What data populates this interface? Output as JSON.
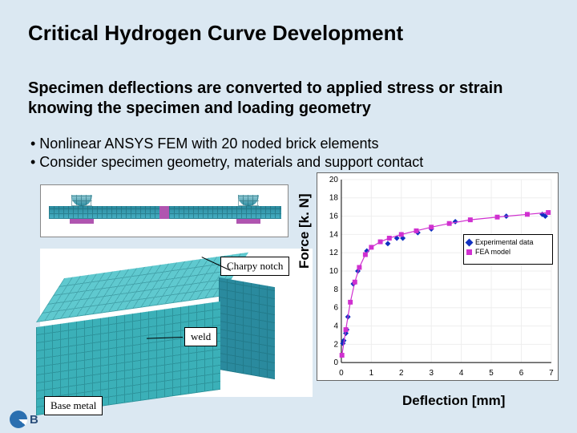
{
  "title": "Critical Hydrogen Curve Development",
  "subtitle": "Specimen deflections are converted to applied stress or strain knowing the specimen and loading geometry",
  "bullets": [
    "• Nonlinear ANSYS FEM with 20 noded brick elements",
    "• Consider specimen geometry, materials and support contact"
  ],
  "labels": {
    "charpy": "Charpy notch",
    "weld": "weld",
    "base_metal": "Base metal"
  },
  "chart": {
    "type": "scatter+line",
    "xlabel": "Deflection [mm]",
    "ylabel": "Force [k. N]",
    "xlim": [
      0,
      7
    ],
    "ylim": [
      0,
      20
    ],
    "xtick_step": 1,
    "ytick_step": 2,
    "background_color": "#ffffff",
    "grid_color": "#e8e8e8",
    "axis_color": "#000000",
    "tick_fontsize": 10,
    "legend": {
      "position": "right",
      "border_color": "#000000",
      "items": [
        {
          "label": "Experimental data",
          "marker": "diamond",
          "color": "#1030c0"
        },
        {
          "label": "FEA model",
          "marker": "square",
          "color": "#d030d0"
        }
      ]
    },
    "series": [
      {
        "name": "Experimental data",
        "marker": "diamond",
        "marker_size": 7,
        "color": "#1030c0",
        "line": false,
        "points": [
          [
            0.05,
            2.1
          ],
          [
            0.08,
            2.4
          ],
          [
            0.15,
            3.2
          ],
          [
            0.18,
            3.6
          ],
          [
            0.22,
            5.0
          ],
          [
            0.4,
            8.6
          ],
          [
            0.55,
            10.0
          ],
          [
            0.85,
            12.2
          ],
          [
            1.55,
            13.0
          ],
          [
            1.85,
            13.6
          ],
          [
            2.05,
            13.6
          ],
          [
            2.55,
            14.2
          ],
          [
            3.0,
            14.6
          ],
          [
            3.8,
            15.4
          ],
          [
            5.5,
            16.0
          ],
          [
            6.7,
            16.2
          ],
          [
            6.8,
            16.0
          ]
        ]
      },
      {
        "name": "FEA model",
        "marker": "square",
        "marker_size": 6,
        "color": "#d030d0",
        "line": true,
        "line_width": 1.2,
        "points": [
          [
            0.02,
            0.8
          ],
          [
            0.15,
            3.6
          ],
          [
            0.3,
            6.6
          ],
          [
            0.45,
            8.8
          ],
          [
            0.6,
            10.4
          ],
          [
            0.8,
            11.8
          ],
          [
            1.0,
            12.6
          ],
          [
            1.3,
            13.2
          ],
          [
            1.6,
            13.6
          ],
          [
            2.0,
            14.0
          ],
          [
            2.5,
            14.4
          ],
          [
            3.0,
            14.8
          ],
          [
            3.6,
            15.2
          ],
          [
            4.3,
            15.6
          ],
          [
            5.2,
            15.9
          ],
          [
            6.2,
            16.2
          ],
          [
            6.9,
            16.4
          ]
        ]
      }
    ]
  },
  "colors": {
    "slide_bg": "#dbe8f2",
    "beam": "#3bb0b8",
    "notch": "#b055b0"
  },
  "logo_text": "B"
}
